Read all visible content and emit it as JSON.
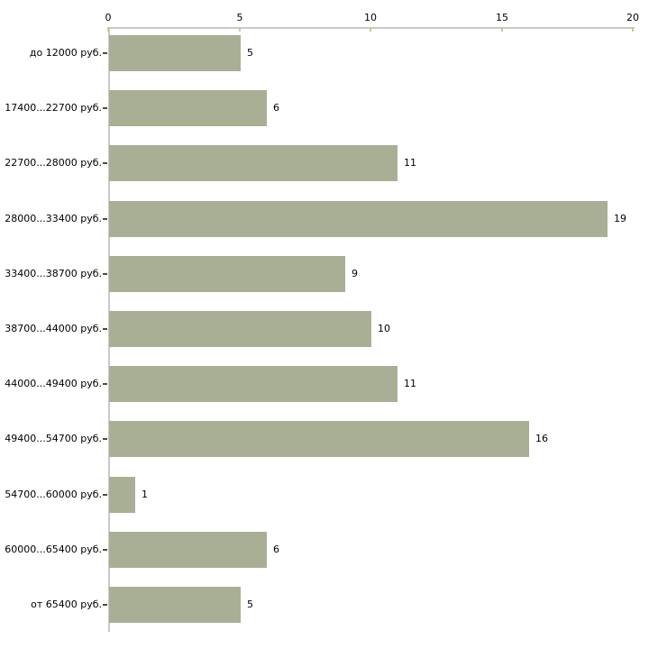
{
  "chart_data": {
    "type": "bar",
    "orientation": "horizontal",
    "title": "",
    "xlabel": "",
    "ylabel": "",
    "categories": [
      "до 12000 руб.",
      "17400...22700 руб.",
      "22700...28000 руб.",
      "28000...33400 руб.",
      "33400...38700 руб.",
      "38700...44000 руб.",
      "44000...49400 руб.",
      "49400...54700 руб.",
      "54700...60000 руб.",
      "60000...65400 руб.",
      "от 65400 руб."
    ],
    "values": [
      5,
      6,
      11,
      19,
      9,
      10,
      11,
      16,
      1,
      6,
      5
    ],
    "xlim": [
      0,
      20
    ],
    "x_ticks": [
      0,
      5,
      10,
      15,
      20
    ],
    "grid": false,
    "legend": false,
    "value_labels_shown": true,
    "colors": {
      "bar": "#a9af94",
      "axis_line": "#c9c9c9",
      "axis_tick": "#c6ca96",
      "category_tick": "#4a4a4a",
      "text": "#000000",
      "background": "#ffffff"
    }
  }
}
